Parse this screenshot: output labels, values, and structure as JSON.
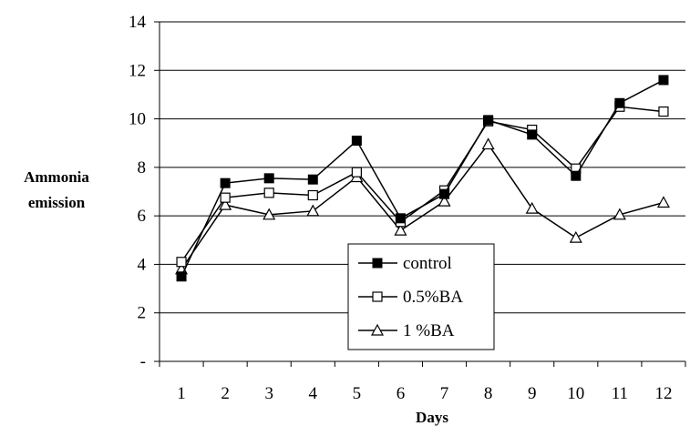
{
  "chart_data": {
    "type": "line",
    "title": "",
    "xlabel": "Days",
    "ylabel_line1": "Ammonia",
    "ylabel_line2": "emission",
    "categories": [
      "1",
      "2",
      "3",
      "4",
      "5",
      "6",
      "7",
      "8",
      "9",
      "10",
      "11",
      "12"
    ],
    "ylim": [
      0,
      14
    ],
    "y_ticks": [
      {
        "value": 0,
        "label": "-"
      },
      {
        "value": 2,
        "label": "2"
      },
      {
        "value": 4,
        "label": "4"
      },
      {
        "value": 6,
        "label": "6"
      },
      {
        "value": 8,
        "label": "8"
      },
      {
        "value": 10,
        "label": "10"
      },
      {
        "value": 12,
        "label": "12"
      },
      {
        "value": 14,
        "label": "14"
      }
    ],
    "grid": "horizontal",
    "legend_position": "bottom-center",
    "series": [
      {
        "name": "control",
        "marker": "filled-square",
        "values": [
          3.5,
          7.35,
          7.55,
          7.5,
          9.1,
          5.9,
          6.9,
          9.95,
          9.35,
          7.65,
          10.65,
          11.6
        ]
      },
      {
        "name": "0.5%BA",
        "marker": "open-square",
        "values": [
          4.1,
          6.75,
          6.95,
          6.85,
          7.8,
          5.75,
          7.05,
          9.9,
          9.55,
          7.95,
          10.5,
          10.3
        ]
      },
      {
        "name": "1 %BA",
        "marker": "open-triangle",
        "values": [
          3.8,
          6.45,
          6.05,
          6.2,
          7.6,
          5.4,
          6.6,
          8.95,
          6.3,
          5.1,
          6.05,
          6.55
        ]
      }
    ],
    "colors": {
      "line": "#000000",
      "grid": "#000000",
      "background": "#ffffff"
    }
  }
}
